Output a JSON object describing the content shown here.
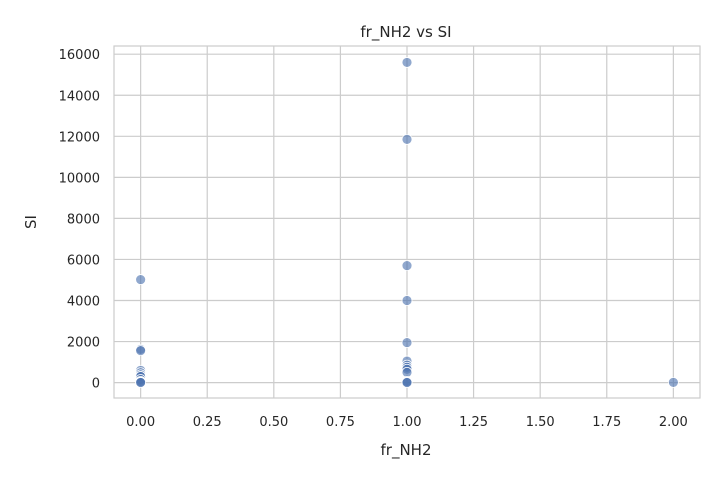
{
  "chart_data": {
    "type": "scatter",
    "title": "fr_NH2 vs SI",
    "xlabel": "fr_NH2",
    "ylabel": "SI",
    "xlim": [
      -0.1,
      2.1
    ],
    "ylim": [
      -750,
      16400
    ],
    "xticks": [
      0.0,
      0.25,
      0.5,
      0.75,
      1.0,
      1.25,
      1.5,
      1.75,
      2.0
    ],
    "xtick_labels": [
      "0.00",
      "0.25",
      "0.50",
      "0.75",
      "1.00",
      "1.25",
      "1.50",
      "1.75",
      "2.00"
    ],
    "yticks": [
      0,
      2000,
      4000,
      6000,
      8000,
      10000,
      12000,
      14000,
      16000
    ],
    "ytick_labels": [
      "0",
      "2000",
      "4000",
      "6000",
      "8000",
      "10000",
      "12000",
      "14000",
      "16000"
    ],
    "grid": true,
    "color": "#4c72b0",
    "points": [
      {
        "x": 0,
        "y": 5020
      },
      {
        "x": 0,
        "y": 1620
      },
      {
        "x": 0,
        "y": 1560
      },
      {
        "x": 0,
        "y": 600
      },
      {
        "x": 0,
        "y": 480
      },
      {
        "x": 0,
        "y": 380
      },
      {
        "x": 0,
        "y": 300
      },
      {
        "x": 0,
        "y": 150
      },
      {
        "x": 0,
        "y": 60
      },
      {
        "x": 0,
        "y": 20
      },
      {
        "x": 0,
        "y": 5
      },
      {
        "x": 1,
        "y": 15600
      },
      {
        "x": 1,
        "y": 11850
      },
      {
        "x": 1,
        "y": 5700
      },
      {
        "x": 1,
        "y": 4000
      },
      {
        "x": 1,
        "y": 1950
      },
      {
        "x": 1,
        "y": 1050
      },
      {
        "x": 1,
        "y": 850
      },
      {
        "x": 1,
        "y": 750
      },
      {
        "x": 1,
        "y": 650
      },
      {
        "x": 1,
        "y": 500
      },
      {
        "x": 1,
        "y": 60
      },
      {
        "x": 1,
        "y": 20
      },
      {
        "x": 1,
        "y": 5
      },
      {
        "x": 2,
        "y": 10
      }
    ]
  }
}
